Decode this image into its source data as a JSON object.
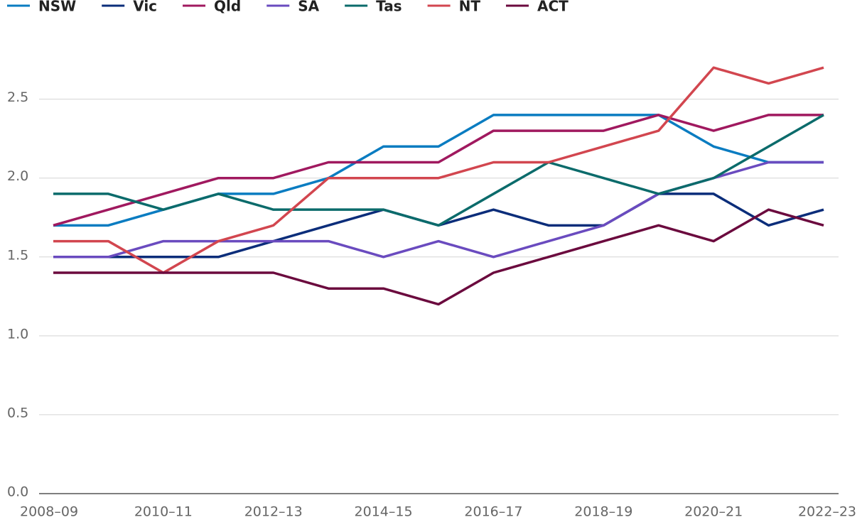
{
  "chart_data": {
    "type": "line",
    "categories": [
      "2008–09",
      null,
      "2010–11",
      null,
      "2012–13",
      null,
      "2014–15",
      null,
      "2016–17",
      null,
      "2018–19",
      null,
      "2020–21",
      null,
      "2022–23"
    ],
    "series": [
      {
        "name": "NSW",
        "color": "#0a7cc1",
        "values": [
          1.7,
          1.7,
          1.8,
          1.9,
          1.9,
          2.0,
          2.2,
          2.2,
          2.4,
          2.4,
          2.4,
          2.4,
          2.2,
          2.1,
          2.1
        ]
      },
      {
        "name": "Vic",
        "color": "#0b2d7a",
        "values": [
          1.5,
          1.5,
          1.5,
          1.5,
          1.6,
          1.7,
          1.8,
          1.7,
          1.8,
          1.7,
          1.7,
          1.9,
          1.9,
          1.7,
          1.8
        ]
      },
      {
        "name": "Qld",
        "color": "#a0195f",
        "values": [
          1.7,
          1.8,
          1.9,
          2.0,
          2.0,
          2.1,
          2.1,
          2.1,
          2.3,
          2.3,
          2.3,
          2.4,
          2.3,
          2.4,
          2.4
        ]
      },
      {
        "name": "SA",
        "color": "#6a4bbf",
        "values": [
          1.5,
          1.5,
          1.6,
          1.6,
          1.6,
          1.6,
          1.5,
          1.6,
          1.5,
          1.6,
          1.7,
          1.9,
          2.0,
          2.1,
          2.1
        ]
      },
      {
        "name": "Tas",
        "color": "#0b6b6b",
        "values": [
          1.9,
          1.9,
          1.8,
          1.9,
          1.8,
          1.8,
          1.8,
          1.7,
          1.9,
          2.1,
          2.0,
          1.9,
          2.0,
          2.2,
          2.4
        ]
      },
      {
        "name": "NT",
        "color": "#d2464f",
        "values": [
          1.6,
          1.6,
          1.4,
          1.6,
          1.7,
          2.0,
          2.0,
          2.0,
          2.1,
          2.1,
          2.2,
          2.3,
          2.7,
          2.6,
          2.7
        ]
      },
      {
        "name": "ACT",
        "color": "#6b0a3e",
        "values": [
          1.4,
          1.4,
          1.4,
          1.4,
          1.4,
          1.3,
          1.3,
          1.2,
          1.4,
          1.5,
          1.6,
          1.7,
          1.6,
          1.8,
          1.7
        ]
      }
    ],
    "ylim": [
      0,
      2.8
    ],
    "yticks": [
      {
        "value": 0,
        "label": "0.0"
      },
      0.5,
      {
        "value": 1,
        "label": "1.0"
      },
      1.5,
      {
        "value": 2,
        "label": "2.0"
      },
      2.5
    ],
    "grid": true
  }
}
